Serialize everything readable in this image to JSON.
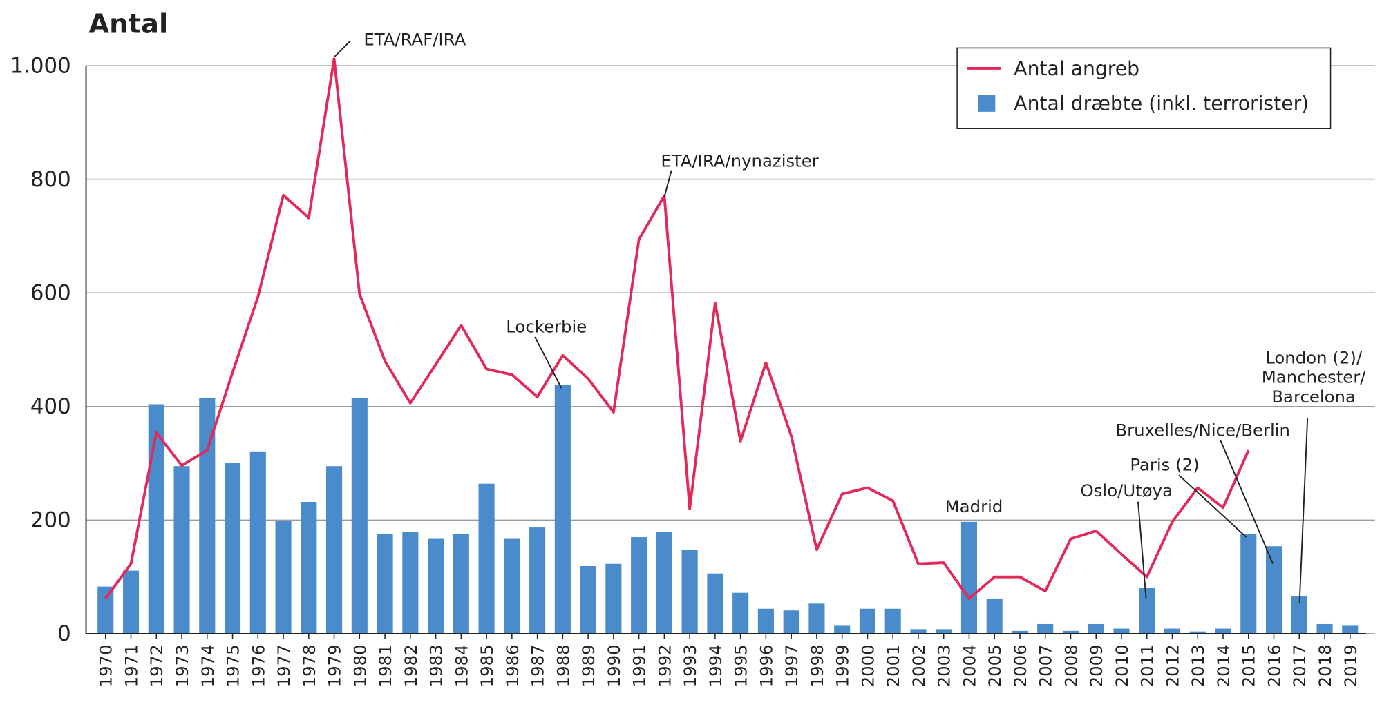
{
  "chart_data": {
    "type": "bar",
    "title": "Antal",
    "categories": [
      "1970",
      "1971",
      "1972",
      "1973",
      "1974",
      "1975",
      "1976",
      "1977",
      "1978",
      "1979",
      "1980",
      "1981",
      "1982",
      "1983",
      "1984",
      "1985",
      "1986",
      "1987",
      "1988",
      "1989",
      "1990",
      "1991",
      "1992",
      "1993",
      "1994",
      "1995",
      "1996",
      "1997",
      "1998",
      "1999",
      "2000",
      "2001",
      "2002",
      "2003",
      "2004",
      "2005",
      "2006",
      "2007",
      "2008",
      "2009",
      "2010",
      "2011",
      "2012",
      "2013",
      "2014",
      "2015",
      "2016",
      "2017",
      "2018",
      "2019"
    ],
    "series": [
      {
        "name": "Antal angreb",
        "type": "line",
        "color": "#e3285a",
        "values": [
          62,
          123,
          354,
          296,
          323,
          460,
          593,
          772,
          732,
          1012,
          598,
          480,
          406,
          474,
          543,
          466,
          456,
          417,
          490,
          449,
          390,
          694,
          771,
          220,
          582,
          339,
          477,
          348,
          148,
          246,
          257,
          234,
          123,
          125,
          62,
          100,
          100,
          75,
          167,
          181,
          140,
          100,
          197,
          257,
          222,
          323,
          null,
          null,
          null,
          null
        ]
      },
      {
        "name": "Antal dræbte (inkl. terrorister)",
        "type": "bar",
        "color": "#4a8ccb",
        "values": [
          83,
          111,
          404,
          295,
          415,
          301,
          321,
          198,
          232,
          295,
          415,
          175,
          179,
          167,
          175,
          264,
          167,
          187,
          438,
          119,
          123,
          170,
          179,
          148,
          106,
          72,
          44,
          41,
          53,
          14,
          44,
          44,
          8,
          8,
          197,
          62,
          5,
          17,
          5,
          17,
          9,
          81,
          9,
          4,
          9,
          176,
          154,
          66,
          17,
          14
        ]
      }
    ],
    "ylim": [
      0,
      1000
    ],
    "yticks": [
      0,
      200,
      400,
      600,
      800,
      {
        "value": 1000,
        "label": "1.000"
      }
    ],
    "grid": true,
    "legend": "top-right",
    "annotations": [
      {
        "lines": [
          "ETA/RAF/IRA"
        ]
      },
      {
        "lines": [
          "ETA/IRA/nynazister"
        ]
      },
      {
        "lines": [
          "Lockerbie"
        ]
      },
      {
        "lines": [
          "Madrid"
        ]
      },
      {
        "lines": [
          "Oslo/Utøya"
        ]
      },
      {
        "lines": [
          "Paris (2)"
        ]
      },
      {
        "lines": [
          "Bruxelles/Nice/Berlin"
        ]
      },
      {
        "lines": [
          "London (2)/",
          "Manchester/",
          "Barcelona"
        ]
      }
    ]
  }
}
